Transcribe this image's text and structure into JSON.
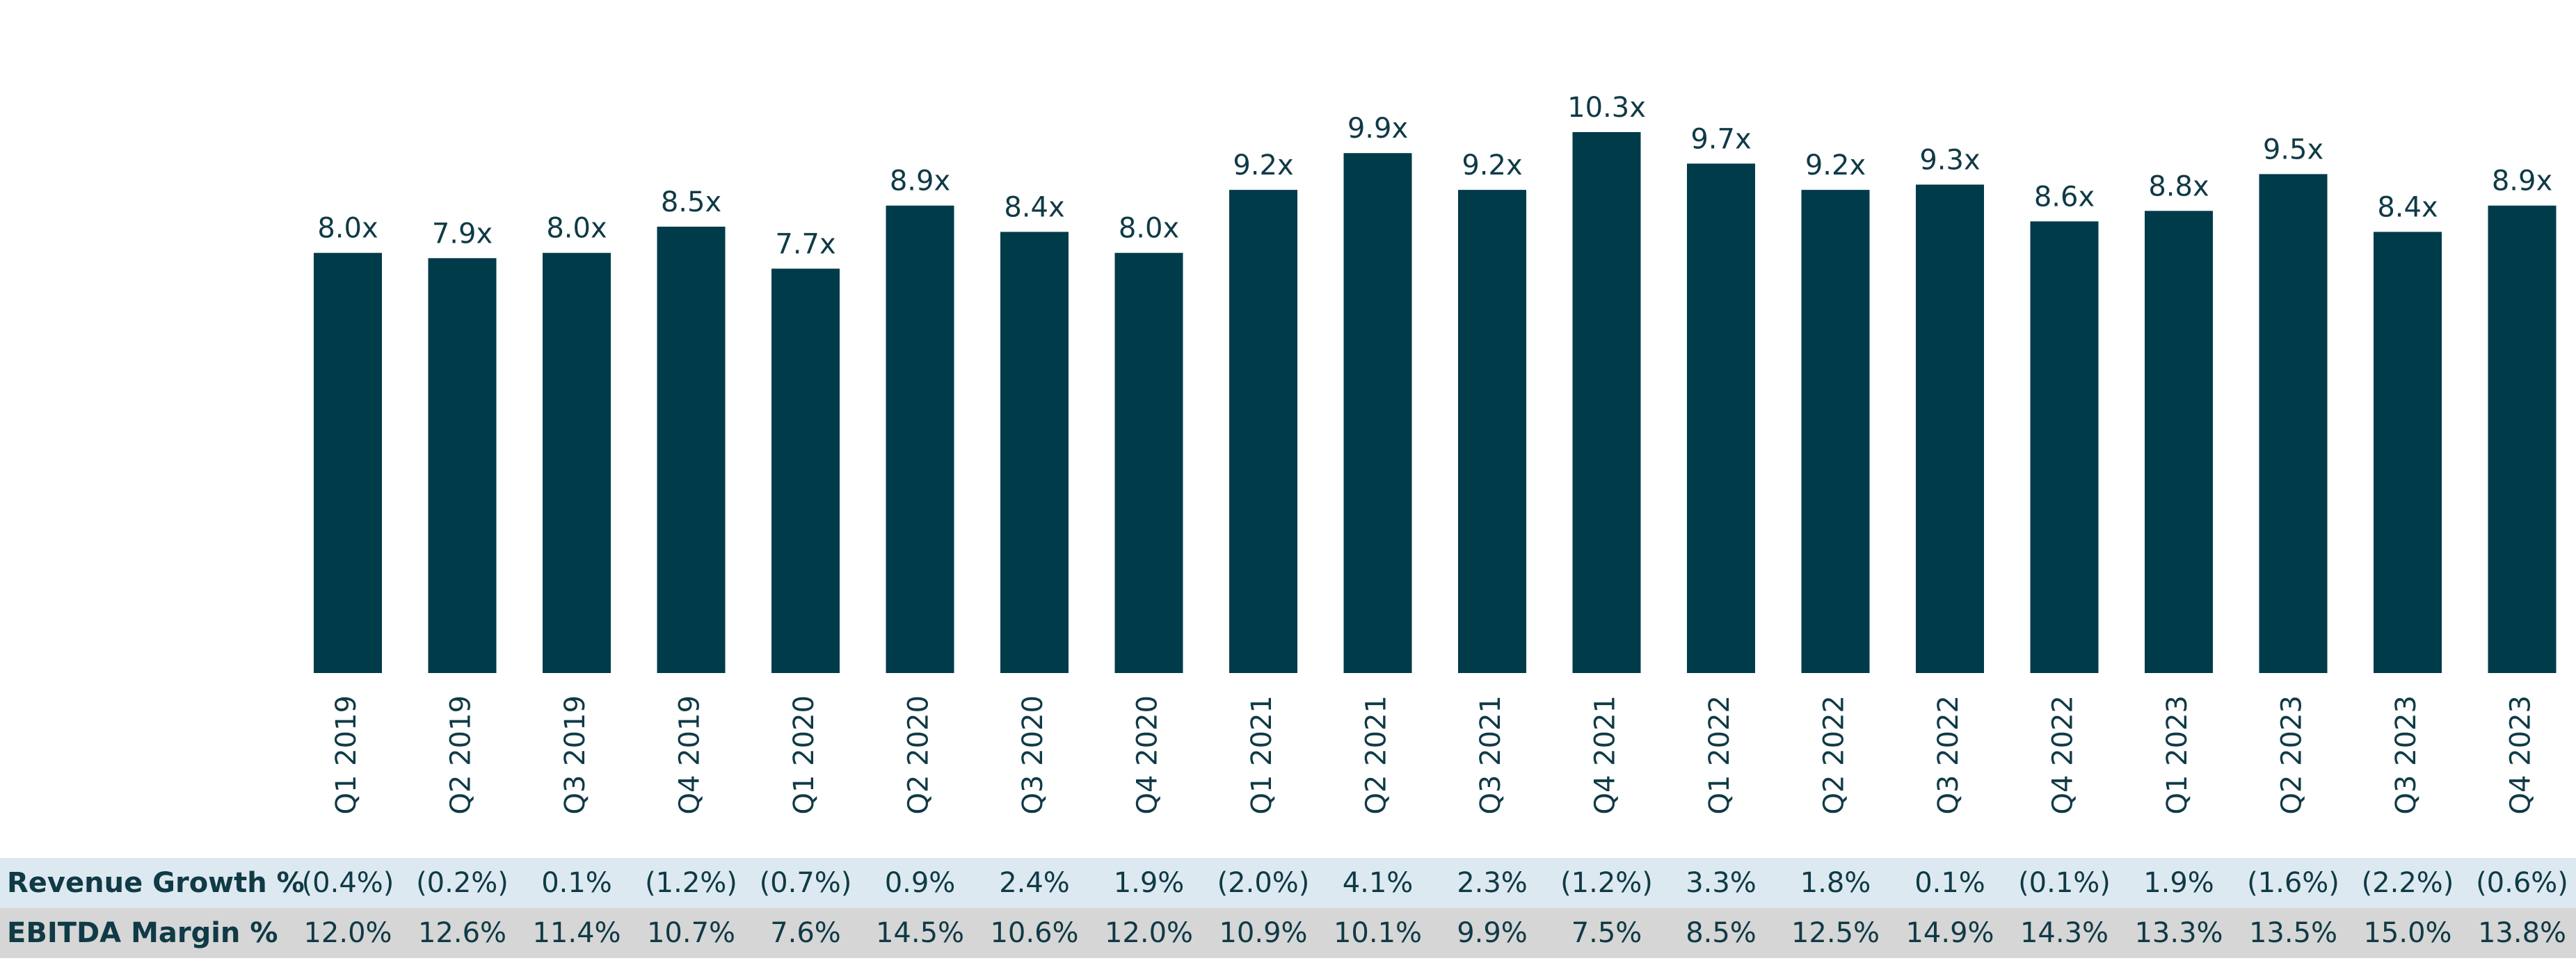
{
  "chart_data": {
    "type": "bar",
    "title": "",
    "xlabel": "",
    "ylabel": "",
    "categories": [
      "Q1 2019",
      "Q2 2019",
      "Q3 2019",
      "Q4 2019",
      "Q1 2020",
      "Q2 2020",
      "Q3 2020",
      "Q4 2020",
      "Q1 2021",
      "Q2 2021",
      "Q3 2021",
      "Q4 2021",
      "Q1 2022",
      "Q2 2022",
      "Q3 2022",
      "Q4 2022",
      "Q1 2023",
      "Q2 2023",
      "Q3 2023",
      "Q4 2023"
    ],
    "values": [
      8.0,
      7.9,
      8.0,
      8.5,
      7.7,
      8.9,
      8.4,
      8.0,
      9.2,
      9.9,
      9.2,
      10.3,
      9.7,
      9.2,
      9.3,
      8.6,
      8.8,
      9.5,
      8.4,
      8.9
    ],
    "value_labels": [
      "8.0x",
      "7.9x",
      "8.0x",
      "8.5x",
      "7.7x",
      "8.9x",
      "8.4x",
      "8.0x",
      "9.2x",
      "9.9x",
      "9.2x",
      "10.3x",
      "9.7x",
      "9.2x",
      "9.3x",
      "8.6x",
      "8.8x",
      "9.5x",
      "8.4x",
      "8.9x"
    ],
    "ylim": [
      0,
      10.3
    ],
    "grid": false,
    "bar_color": "#003b4a",
    "table_rows": [
      {
        "header": "Revenue Growth %",
        "band_color": "#dde9f0",
        "cells": [
          "(0.4%)",
          "(0.2%)",
          "0.1%",
          "(1.2%)",
          "(0.7%)",
          "0.9%",
          "2.4%",
          "1.9%",
          "(2.0%)",
          "4.1%",
          "2.3%",
          "(1.2%)",
          "3.3%",
          "1.8%",
          "0.1%",
          "(0.1%)",
          "1.9%",
          "(1.6%)",
          "(2.2%)",
          "(0.6%)"
        ]
      },
      {
        "header": "EBITDA Margin %",
        "band_color": "#d6d6d6",
        "cells": [
          "12.0%",
          "12.6%",
          "11.4%",
          "10.7%",
          "7.6%",
          "14.5%",
          "10.6%",
          "12.0%",
          "10.9%",
          "10.1%",
          "9.9%",
          "7.5%",
          "8.5%",
          "12.5%",
          "14.9%",
          "14.3%",
          "13.3%",
          "13.5%",
          "15.0%",
          "13.8%"
        ]
      }
    ]
  }
}
